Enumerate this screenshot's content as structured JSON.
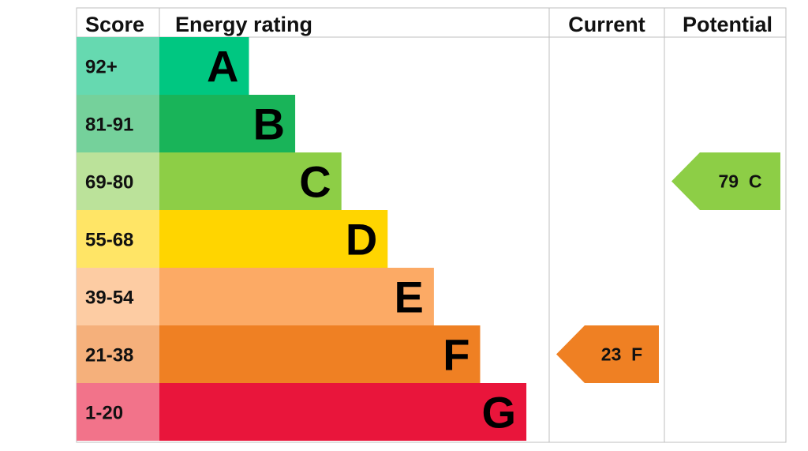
{
  "headers": {
    "score": "Score",
    "energy_rating": "Energy rating",
    "current": "Current",
    "potential": "Potential"
  },
  "chart_data": {
    "type": "bar",
    "categories": [
      "A",
      "B",
      "C",
      "D",
      "E",
      "F",
      "G"
    ],
    "score_ranges": [
      "92+",
      "81-91",
      "69-80",
      "55-68",
      "39-54",
      "21-38",
      "1-20"
    ],
    "bar_colors": [
      "#00c781",
      "#19b459",
      "#8dce46",
      "#ffd500",
      "#fcaa65",
      "#ef8023",
      "#e9153b"
    ],
    "score_cell_colors": [
      "#66d9b0",
      "#75d19b",
      "#bbe29a",
      "#ffe566",
      "#fdcca3",
      "#f5b07b",
      "#f2738a"
    ],
    "current": {
      "value": 23,
      "rating": "F",
      "label": "23  F",
      "color": "#ef8023"
    },
    "potential": {
      "value": 79,
      "rating": "C",
      "label": "79  C",
      "color": "#8dce46"
    }
  }
}
